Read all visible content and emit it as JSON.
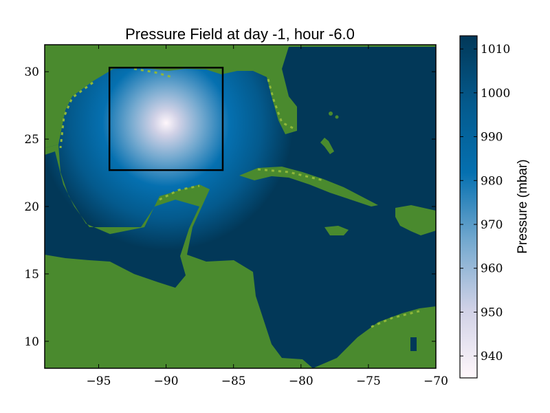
{
  "chart_data": {
    "type": "heatmap",
    "title": "Pressure Field at day -1, hour -6.0",
    "xlabel": "",
    "ylabel": "",
    "xlim": [
      -99,
      -70
    ],
    "ylim": [
      8,
      32
    ],
    "x_ticks": [
      -95,
      -90,
      -85,
      -80,
      -75,
      -70
    ],
    "x_tick_labels": [
      "−95",
      "−90",
      "−85",
      "−80",
      "−75",
      "−70"
    ],
    "y_ticks": [
      10,
      15,
      20,
      25,
      30
    ],
    "y_tick_labels": [
      "10",
      "15",
      "20",
      "25",
      "30"
    ],
    "grid": false,
    "pressure_field": {
      "center_lon": -90,
      "center_lat": 26.2,
      "min_pressure": 935,
      "ambient_pressure": 1013
    },
    "highlight_box": {
      "lon_min": -94.2,
      "lon_max": -85.8,
      "lat_min": 22.7,
      "lat_max": 30.3
    },
    "land_color": "#4a8a2e",
    "land_highlight_color": "#8fb83a",
    "colorbar": {
      "label": "Pressure (mbar)",
      "range": [
        935,
        1013
      ],
      "ticks": [
        940,
        950,
        960,
        970,
        980,
        990,
        1000,
        1010
      ],
      "tick_labels": [
        "940",
        "950",
        "960",
        "970",
        "980",
        "990",
        "1000",
        "1010"
      ],
      "colors": [
        "#fff7fb",
        "#d0d1e6",
        "#74a9cf",
        "#0570b0",
        "#045a8d",
        "#023858"
      ]
    }
  }
}
